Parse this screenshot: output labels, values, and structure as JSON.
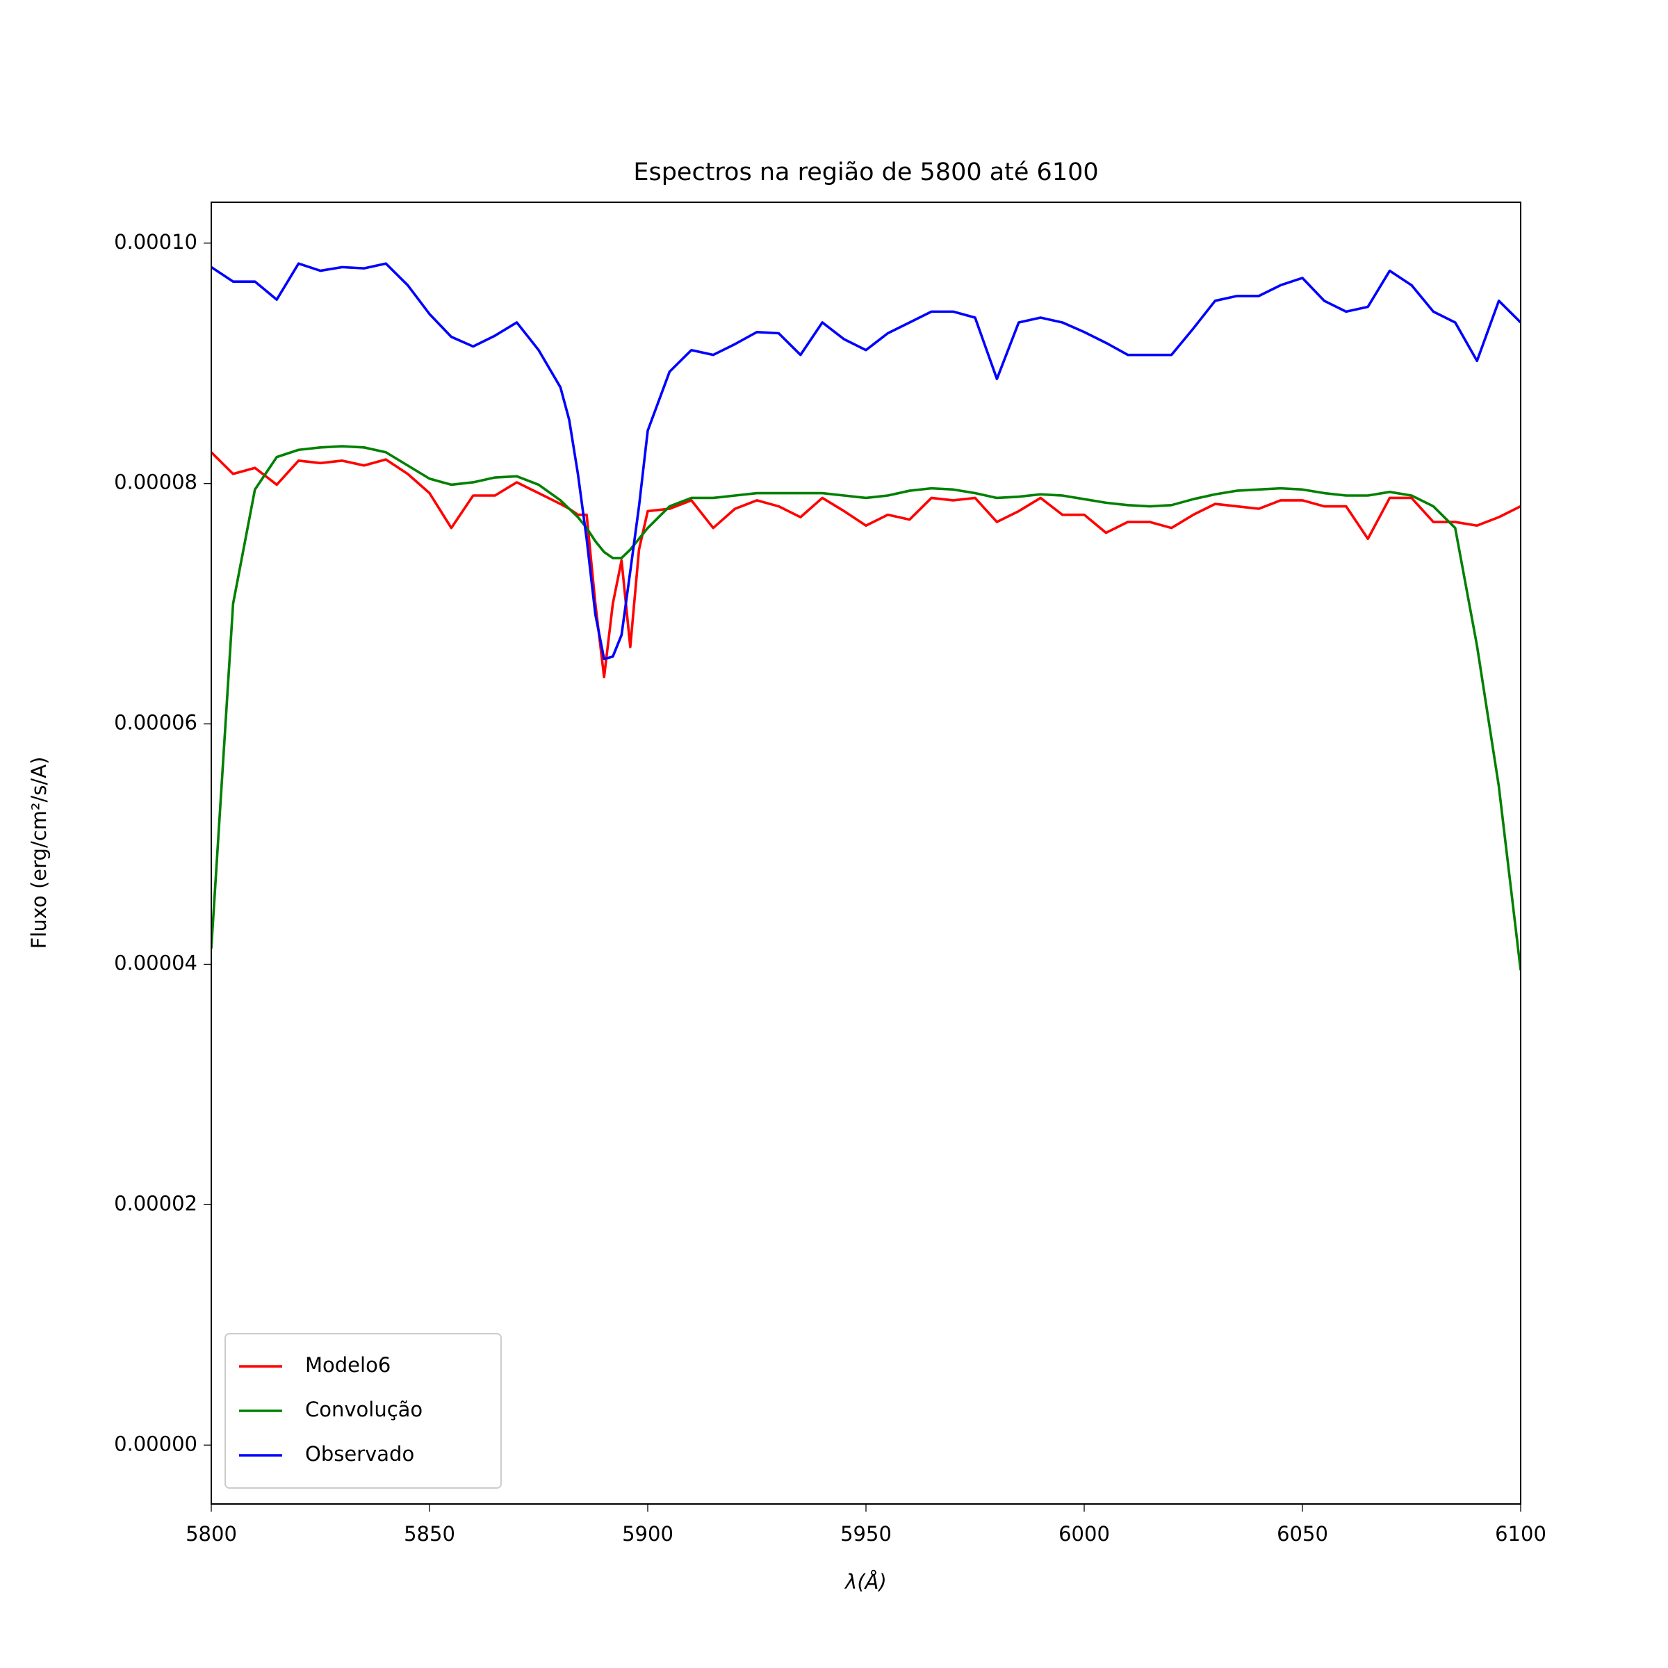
{
  "chart_data": {
    "type": "line",
    "title": "Espectros na região de 5800 até 6100",
    "x_label": "λ(Å)",
    "y_label": "Fluxo (erg/cm²/s/A)",
    "x": [
      5800,
      5805,
      5810,
      5815,
      5820,
      5825,
      5830,
      5835,
      5840,
      5845,
      5850,
      5855,
      5860,
      5865,
      5870,
      5875,
      5880,
      5882,
      5884,
      5886,
      5888,
      5890,
      5892,
      5894,
      5896,
      5898,
      5900,
      5905,
      5910,
      5915,
      5920,
      5925,
      5930,
      5935,
      5940,
      5945,
      5950,
      5955,
      5960,
      5965,
      5970,
      5975,
      5980,
      5985,
      5990,
      5995,
      6000,
      6005,
      6010,
      6015,
      6020,
      6025,
      6030,
      6035,
      6040,
      6045,
      6050,
      6055,
      6060,
      6065,
      6070,
      6075,
      6080,
      6085,
      6090,
      6095,
      6100
    ],
    "series": [
      {
        "name": "Modelo6",
        "color": "#ff0000",
        "values": [
          8.26e-05,
          8.08e-05,
          8.13e-05,
          7.99e-05,
          8.19e-05,
          8.17e-05,
          8.19e-05,
          8.15e-05,
          8.2e-05,
          8.08e-05,
          7.92e-05,
          7.63e-05,
          7.9e-05,
          7.9e-05,
          8.01e-05,
          7.92e-05,
          7.83e-05,
          7.79e-05,
          7.74e-05,
          7.74e-05,
          7e-05,
          6.39e-05,
          7e-05,
          7.36e-05,
          6.64e-05,
          7.45e-05,
          7.77e-05,
          7.79e-05,
          7.86e-05,
          7.63e-05,
          7.79e-05,
          7.86e-05,
          7.81e-05,
          7.72e-05,
          7.88e-05,
          7.77e-05,
          7.65e-05,
          7.74e-05,
          7.7e-05,
          7.88e-05,
          7.86e-05,
          7.88e-05,
          7.68e-05,
          7.77e-05,
          7.88e-05,
          7.74e-05,
          7.74e-05,
          7.59e-05,
          7.68e-05,
          7.68e-05,
          7.63e-05,
          7.74e-05,
          7.83e-05,
          7.81e-05,
          7.79e-05,
          7.86e-05,
          7.86e-05,
          7.81e-05,
          7.81e-05,
          7.54e-05,
          7.88e-05,
          7.88e-05,
          7.68e-05,
          7.68e-05,
          7.65e-05,
          7.72e-05,
          7.81e-05
        ]
      },
      {
        "name": "Convolução",
        "color": "#008000",
        "values": [
          4.13e-05,
          7e-05,
          7.95e-05,
          8.22e-05,
          8.28e-05,
          8.3e-05,
          8.31e-05,
          8.3e-05,
          8.26e-05,
          8.15e-05,
          8.04e-05,
          7.99e-05,
          8.01e-05,
          8.05e-05,
          8.06e-05,
          7.99e-05,
          7.86e-05,
          7.79e-05,
          7.72e-05,
          7.63e-05,
          7.52e-05,
          7.43e-05,
          7.38e-05,
          7.38e-05,
          7.45e-05,
          7.54e-05,
          7.63e-05,
          7.81e-05,
          7.88e-05,
          7.88e-05,
          7.9e-05,
          7.92e-05,
          7.92e-05,
          7.92e-05,
          7.92e-05,
          7.9e-05,
          7.88e-05,
          7.9e-05,
          7.94e-05,
          7.96e-05,
          7.95e-05,
          7.92e-05,
          7.88e-05,
          7.89e-05,
          7.91e-05,
          7.9e-05,
          7.87e-05,
          7.84e-05,
          7.82e-05,
          7.81e-05,
          7.82e-05,
          7.87e-05,
          7.91e-05,
          7.94e-05,
          7.95e-05,
          7.96e-05,
          7.95e-05,
          7.92e-05,
          7.9e-05,
          7.9e-05,
          7.93e-05,
          7.9e-05,
          7.81e-05,
          7.63e-05,
          6.65e-05,
          5.48e-05,
          3.95e-05
        ]
      },
      {
        "name": "Observado",
        "color": "#0000ff",
        "values": [
          9.8e-05,
          9.68e-05,
          9.68e-05,
          9.53e-05,
          9.83e-05,
          9.77e-05,
          9.8e-05,
          9.79e-05,
          9.83e-05,
          9.65e-05,
          9.41e-05,
          9.22e-05,
          9.14e-05,
          9.23e-05,
          9.34e-05,
          9.11e-05,
          8.8e-05,
          8.53e-05,
          8.08e-05,
          7.54e-05,
          6.91e-05,
          6.54e-05,
          6.56e-05,
          6.74e-05,
          7.27e-05,
          7.81e-05,
          8.44e-05,
          8.93e-05,
          9.11e-05,
          9.07e-05,
          9.16e-05,
          9.26e-05,
          9.25e-05,
          9.07e-05,
          9.34e-05,
          9.2e-05,
          9.11e-05,
          9.25e-05,
          9.34e-05,
          9.43e-05,
          9.43e-05,
          9.38e-05,
          8.87e-05,
          9.34e-05,
          9.38e-05,
          9.34e-05,
          9.26e-05,
          9.17e-05,
          9.07e-05,
          9.07e-05,
          9.07e-05,
          9.29e-05,
          9.52e-05,
          9.56e-05,
          9.56e-05,
          9.65e-05,
          9.71e-05,
          9.52e-05,
          9.43e-05,
          9.47e-05,
          9.77e-05,
          9.65e-05,
          9.43e-05,
          9.34e-05,
          9.02e-05,
          9.52e-05,
          9.34e-05
        ]
      }
    ],
    "xlim": [
      5800,
      6100
    ],
    "xticks": [
      5800,
      5850,
      5900,
      5950,
      6000,
      6050,
      6100
    ],
    "ylim": [
      -4.9e-06,
      0.0001034
    ],
    "yticks": [
      {
        "value": 0,
        "label": "0.00000"
      },
      {
        "value": 2e-05,
        "label": "0.00002"
      },
      {
        "value": 4e-05,
        "label": "0.00004"
      },
      {
        "value": 6e-05,
        "label": "0.00006"
      },
      {
        "value": 8e-05,
        "label": "0.00008"
      },
      {
        "value": 0.0001,
        "label": "0.00010"
      }
    ],
    "legend": "lower left",
    "grid": false
  }
}
